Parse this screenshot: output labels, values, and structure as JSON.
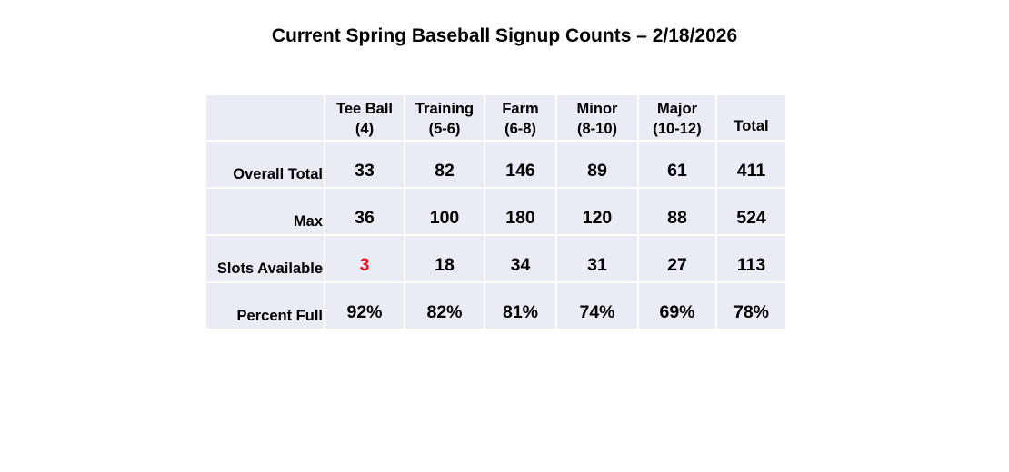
{
  "title": "Current Spring Baseball Signup Counts – 2/18/2026",
  "columns": [
    {
      "line1": "Tee Ball",
      "line2": "(4)"
    },
    {
      "line1": "Training",
      "line2": "(5-6)"
    },
    {
      "line1": "Farm",
      "line2": "(6-8)"
    },
    {
      "line1": "Minor",
      "line2": "(8-10)"
    },
    {
      "line1": "Major",
      "line2": "(10-12)"
    },
    {
      "line1": "Total",
      "line2": ""
    }
  ],
  "rows": [
    {
      "label": "Overall Total",
      "values": [
        "33",
        "82",
        "146",
        "89",
        "61",
        "411"
      ]
    },
    {
      "label": "Max",
      "values": [
        "36",
        "100",
        "180",
        "120",
        "88",
        "524"
      ]
    },
    {
      "label": "Slots Available",
      "values": [
        "3",
        "18",
        "34",
        "31",
        "27",
        "113"
      ]
    },
    {
      "label": "Percent Full",
      "values": [
        "92%",
        "82%",
        "81%",
        "74%",
        "69%",
        "78%"
      ]
    }
  ],
  "colors": {
    "cell_background": "#e9ebf5",
    "highlight": "#e8161c",
    "text": "#000000"
  }
}
